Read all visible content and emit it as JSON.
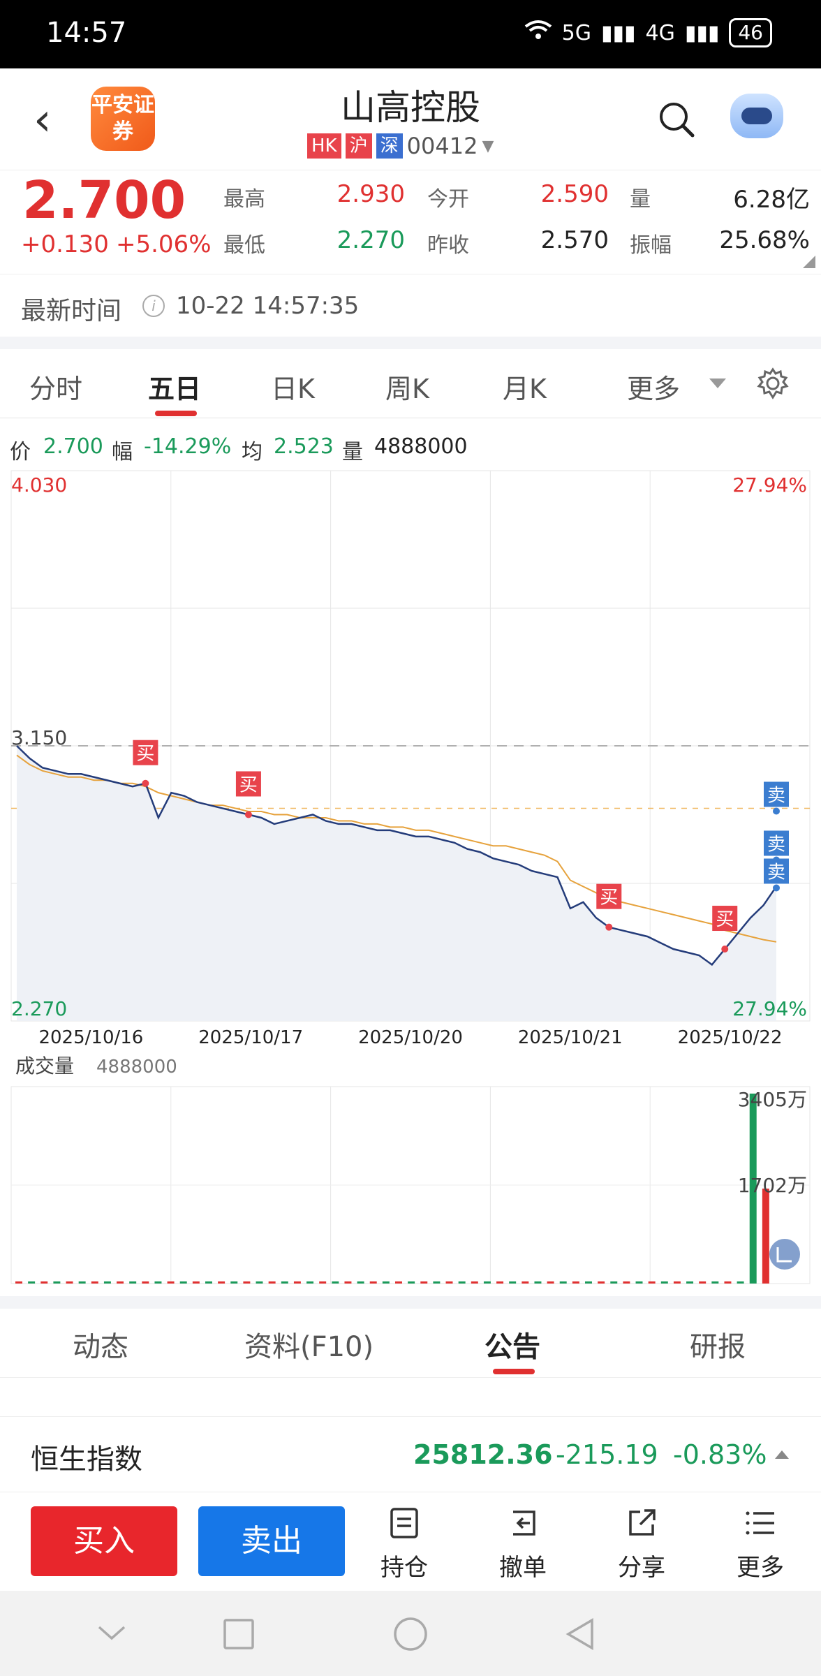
{
  "status_bar": {
    "time": "14:57",
    "network1": "5G",
    "network2": "4G",
    "battery": "46"
  },
  "header": {
    "title": "山高控股",
    "code": "00412",
    "tags": [
      "HK",
      "沪",
      "深"
    ],
    "logo_text": "平安证券"
  },
  "quote": {
    "price": "2.700",
    "change": "+0.130",
    "change_pct": "+5.06%",
    "high_label": "最高",
    "high": "2.930",
    "open_label": "今开",
    "open": "2.590",
    "volume_label": "量",
    "volume": "6.28亿",
    "low_label": "最低",
    "low": "2.270",
    "prev_close_label": "昨收",
    "prev_close": "2.570",
    "amplitude_label": "振幅",
    "amplitude": "25.68%"
  },
  "latest_time": {
    "label": "最新时间",
    "value": "10-22 14:57:35"
  },
  "chart_tabs": [
    "分时",
    "五日",
    "日K",
    "周K",
    "月K",
    "更多"
  ],
  "info_line": {
    "price_label": "价",
    "price": "2.700",
    "pct_label": "幅",
    "pct": "-14.29%",
    "avg_label": "均",
    "avg": "2.523",
    "vol_label": "量",
    "vol": "4888000"
  },
  "colors": {
    "up": "#e03030",
    "down": "#1a9a5a",
    "price_line": "#243c7a",
    "avg_line": "#e6a23c",
    "buy_marker": "#e8434b",
    "sell_marker": "#3b7dd0"
  },
  "chart_data": [
    {
      "type": "line",
      "ylim": [
        2.27,
        4.03
      ],
      "ref_price": 3.15,
      "y_top_label": "4.030",
      "y_bottom_label": "2.270",
      "ref_label": "3.150",
      "pct_top_label": "27.94%",
      "pct_bottom_label": "27.94%",
      "x_labels": [
        "2025/10/16",
        "2025/10/17",
        "2025/10/20",
        "2025/10/21",
        "2025/10/22"
      ],
      "series": [
        {
          "values": [
            3.15,
            3.11,
            3.08,
            3.07,
            3.06,
            3.06,
            3.05,
            3.04,
            3.03,
            3.02,
            3.03,
            2.92,
            3.0,
            2.99,
            2.97,
            2.96,
            2.95,
            2.94,
            2.93,
            2.92,
            2.9,
            2.91,
            2.92,
            2.93,
            2.91,
            2.9,
            2.9,
            2.89,
            2.88,
            2.88,
            2.87,
            2.86,
            2.86,
            2.85,
            2.84,
            2.82,
            2.81,
            2.79,
            2.78,
            2.77,
            2.75,
            2.74,
            2.73,
            2.63,
            2.65,
            2.6,
            2.57,
            2.56,
            2.55,
            2.54,
            2.52,
            2.5,
            2.49,
            2.48,
            2.45,
            2.5,
            2.55,
            2.6,
            2.64,
            2.7
          ]
        },
        {
          "values": [
            3.12,
            3.09,
            3.07,
            3.06,
            3.05,
            3.05,
            3.04,
            3.04,
            3.03,
            3.03,
            3.02,
            3.0,
            2.99,
            2.98,
            2.97,
            2.96,
            2.96,
            2.95,
            2.94,
            2.94,
            2.93,
            2.93,
            2.92,
            2.92,
            2.92,
            2.91,
            2.91,
            2.9,
            2.9,
            2.89,
            2.89,
            2.88,
            2.88,
            2.87,
            2.86,
            2.85,
            2.84,
            2.83,
            2.83,
            2.82,
            2.81,
            2.8,
            2.78,
            2.72,
            2.7,
            2.68,
            2.66,
            2.65,
            2.64,
            2.63,
            2.62,
            2.61,
            2.6,
            2.59,
            2.58,
            2.56,
            2.55,
            2.54,
            2.53,
            2.523
          ]
        }
      ],
      "markers": [
        {
          "label": "买",
          "kind": "buy",
          "x_index": 10
        },
        {
          "label": "买",
          "kind": "buy",
          "x_index": 18
        },
        {
          "label": "买",
          "kind": "buy",
          "x_index": 46
        },
        {
          "label": "买",
          "kind": "buy",
          "x_index": 55
        },
        {
          "label": "卖",
          "kind": "sell",
          "x_index": 59
        },
        {
          "label": "卖",
          "kind": "sell",
          "x_index": 59
        },
        {
          "label": "卖",
          "kind": "sell",
          "x_index": 59
        }
      ]
    },
    {
      "type": "bar",
      "title": "成交量",
      "value_label": "4888000",
      "y_top_label": "3405万",
      "y_mid_label": "1702万",
      "ylim": [
        0,
        3405
      ],
      "values": [
        3,
        4,
        5,
        18,
        4,
        3,
        2,
        3,
        2,
        3,
        2,
        3,
        2,
        2,
        3,
        2,
        3,
        11,
        3,
        2,
        2,
        3,
        2,
        2,
        3,
        2,
        2,
        3,
        2,
        3,
        2,
        2,
        3,
        2,
        3,
        4,
        3,
        2,
        2,
        3,
        2,
        3,
        4,
        2,
        3,
        2,
        5,
        3,
        2,
        6,
        8,
        3,
        4,
        3,
        5,
        14,
        22,
        30,
        3405,
        1702
      ],
      "colors": [
        "up",
        "down",
        "up",
        "down",
        "up",
        "down",
        "up",
        "down",
        "up",
        "down",
        "up",
        "down",
        "up",
        "down",
        "up",
        "down",
        "up",
        "down",
        "up",
        "down",
        "up",
        "down",
        "up",
        "down",
        "up",
        "down",
        "up",
        "down",
        "up",
        "down",
        "up",
        "down",
        "up",
        "down",
        "up",
        "down",
        "up",
        "down",
        "up",
        "down",
        "up",
        "down",
        "up",
        "down",
        "up",
        "down",
        "up",
        "down",
        "up",
        "down",
        "up",
        "down",
        "up",
        "down",
        "up",
        "down",
        "up",
        "down",
        "down",
        "up"
      ]
    }
  ],
  "info_tabs": [
    "动态",
    "资料(F10)",
    "公告",
    "研报"
  ],
  "index_bar": {
    "name": "恒生指数",
    "value": "25812.36",
    "change": "-215.19",
    "change_pct": "-0.83%"
  },
  "actions": {
    "buy": "买入",
    "sell": "卖出",
    "position": "持仓",
    "cancel": "撤单",
    "share": "分享",
    "more": "更多"
  }
}
